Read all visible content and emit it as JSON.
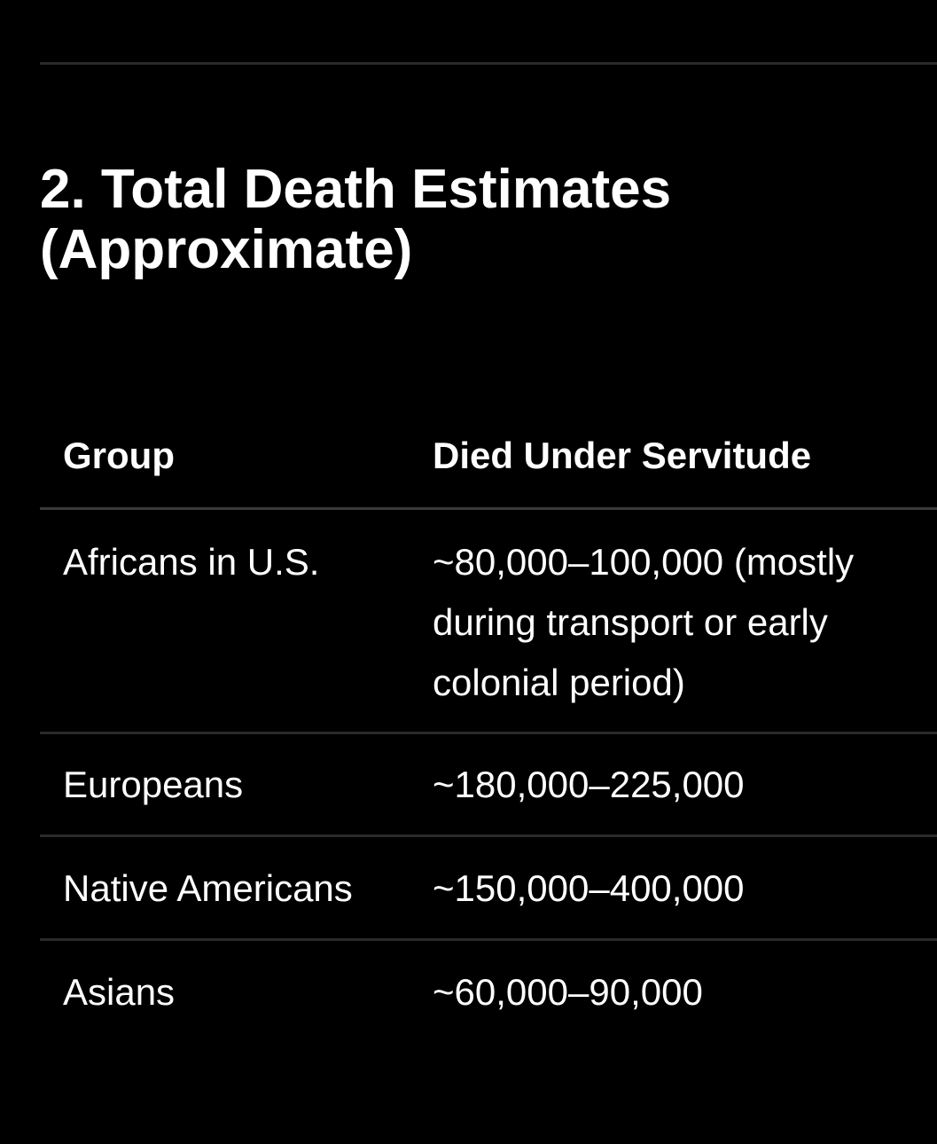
{
  "section": {
    "title": "2. Total Death Estimates (Approximate)"
  },
  "table": {
    "headers": [
      "Group",
      "Died Under Servitude"
    ],
    "rows": [
      {
        "group": "Africans in U.S.",
        "died": "~80,000–100,000 (mostly during transport or early colonial period)"
      },
      {
        "group": "Europeans",
        "died": "~180,000–225,000"
      },
      {
        "group": "Native Americans",
        "died": "~150,000–400,000"
      },
      {
        "group": "Asians",
        "died": "~60,000–90,000"
      }
    ]
  },
  "colors": {
    "background": "#000000",
    "text": "#ffffff",
    "rule": "#2a2a2a"
  }
}
